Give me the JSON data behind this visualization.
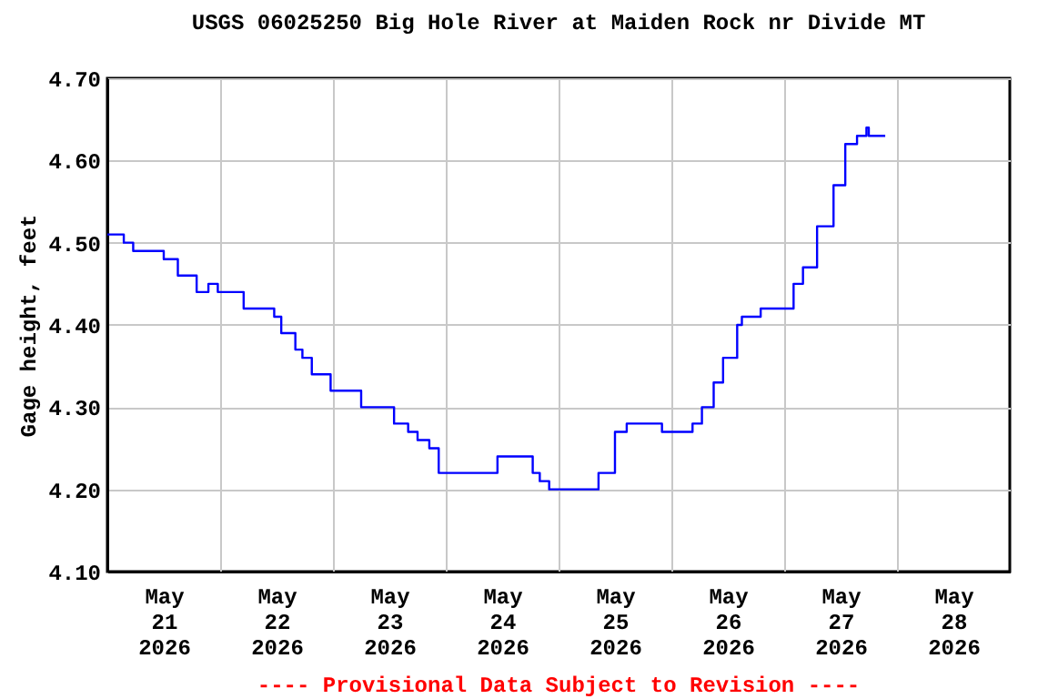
{
  "chart_data": {
    "type": "step",
    "title": "USGS 06025250 Big Hole River at Maiden Rock nr Divide MT",
    "ylabel": "Gage height, feet",
    "annotations": [
      "---- Provisional Data Subject to Revision ----"
    ],
    "x": [
      "2026-05-21T00:00",
      "2026-05-21T03:30",
      "2026-05-21T05:30",
      "2026-05-21T10:00",
      "2026-05-21T12:00",
      "2026-05-21T15:00",
      "2026-05-21T17:00",
      "2026-05-21T19:00",
      "2026-05-21T21:30",
      "2026-05-21T23:30",
      "2026-05-22T03:00",
      "2026-05-22T05:00",
      "2026-05-22T08:30",
      "2026-05-22T11:30",
      "2026-05-22T13:00",
      "2026-05-22T16:00",
      "2026-05-22T17:30",
      "2026-05-22T19:30",
      "2026-05-22T21:30",
      "2026-05-22T23:30",
      "2026-05-23T03:00",
      "2026-05-23T06:00",
      "2026-05-23T10:30",
      "2026-05-23T13:00",
      "2026-05-23T16:00",
      "2026-05-23T18:00",
      "2026-05-23T20:30",
      "2026-05-23T22:30",
      "2026-05-24T00:00",
      "2026-05-24T05:00",
      "2026-05-24T09:00",
      "2026-05-24T11:00",
      "2026-05-24T15:30",
      "2026-05-24T18:30",
      "2026-05-24T20:00",
      "2026-05-24T22:00",
      "2026-05-25T01:00",
      "2026-05-25T06:30",
      "2026-05-25T08:30",
      "2026-05-25T12:00",
      "2026-05-25T14:30",
      "2026-05-25T20:00",
      "2026-05-25T22:00",
      "2026-05-26T02:30",
      "2026-05-26T04:30",
      "2026-05-26T06:30",
      "2026-05-26T09:00",
      "2026-05-26T11:00",
      "2026-05-26T14:00",
      "2026-05-26T15:00",
      "2026-05-26T19:00",
      "2026-05-26T23:00",
      "2026-05-27T02:00",
      "2026-05-27T04:00",
      "2026-05-27T07:00",
      "2026-05-27T10:30",
      "2026-05-27T13:00",
      "2026-05-27T15:30",
      "2026-05-27T17:30",
      "2026-05-27T18:00",
      "2026-05-27T21:30"
    ],
    "series": [
      {
        "color": "#0000ff",
        "values": [
          4.51,
          4.5,
          4.49,
          4.49,
          4.48,
          4.46,
          4.46,
          4.44,
          4.45,
          4.44,
          4.44,
          4.42,
          4.42,
          4.41,
          4.39,
          4.37,
          4.36,
          4.34,
          4.34,
          4.32,
          4.32,
          4.3,
          4.3,
          4.28,
          4.27,
          4.26,
          4.25,
          4.22,
          4.22,
          4.22,
          4.22,
          4.24,
          4.24,
          4.22,
          4.21,
          4.2,
          4.2,
          4.2,
          4.22,
          4.27,
          4.28,
          4.28,
          4.27,
          4.27,
          4.28,
          4.3,
          4.33,
          4.36,
          4.4,
          4.41,
          4.42,
          4.42,
          4.45,
          4.47,
          4.52,
          4.57,
          4.62,
          4.63,
          4.64,
          4.63,
          4.63
        ]
      }
    ],
    "xlim": [
      "2026-05-21T00:00",
      "2026-05-29T00:00"
    ],
    "xticks": [
      {
        "value": "2026-05-21T12:00",
        "label": "May\n21\n2026"
      },
      {
        "value": "2026-05-22T00:00",
        "label": null
      },
      {
        "value": "2026-05-22T12:00",
        "label": "May\n22\n2026"
      },
      {
        "value": "2026-05-23T00:00",
        "label": null
      },
      {
        "value": "2026-05-23T12:00",
        "label": "May\n23\n2026"
      },
      {
        "value": "2026-05-24T00:00",
        "label": null
      },
      {
        "value": "2026-05-24T12:00",
        "label": "May\n24\n2026"
      },
      {
        "value": "2026-05-25T00:00",
        "label": null
      },
      {
        "value": "2026-05-25T12:00",
        "label": "May\n25\n2026"
      },
      {
        "value": "2026-05-26T00:00",
        "label": null
      },
      {
        "value": "2026-05-26T12:00",
        "label": "May\n26\n2026"
      },
      {
        "value": "2026-05-27T00:00",
        "label": null
      },
      {
        "value": "2026-05-27T12:00",
        "label": "May\n27\n2026"
      },
      {
        "value": "2026-05-28T00:00",
        "label": null
      },
      {
        "value": "2026-05-28T12:00",
        "label": "May\n28\n2026"
      }
    ],
    "ylim": [
      4.1,
      4.7
    ],
    "yticks": [
      {
        "value": 4.1,
        "label": "4.10"
      },
      {
        "value": 4.2,
        "label": "4.20"
      },
      {
        "value": 4.3,
        "label": "4.30"
      },
      {
        "value": 4.4,
        "label": "4.40"
      },
      {
        "value": 4.5,
        "label": "4.50"
      },
      {
        "value": 4.6,
        "label": "4.60"
      },
      {
        "value": 4.7,
        "label": "4.70"
      }
    ],
    "grid": true,
    "marker": "none",
    "line_style": "solid"
  }
}
